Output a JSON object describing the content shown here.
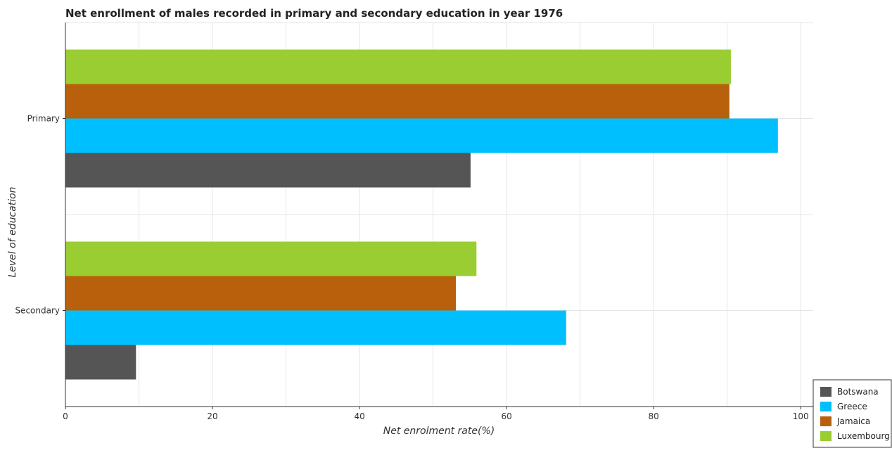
{
  "chart_data": {
    "type": "bar",
    "orientation": "horizontal",
    "title": "Net enrollment of males recorded in primary and secondary education in year 1976",
    "xlabel": "Net enrolment rate(%)",
    "ylabel": "Level of education",
    "categories": [
      "Primary",
      "Secondary"
    ],
    "series": [
      {
        "name": "Botswana",
        "color": "#555555",
        "values": [
          55.1,
          9.6
        ]
      },
      {
        "name": "Greece",
        "color": "#00bfff",
        "values": [
          96.9,
          68.1
        ]
      },
      {
        "name": "Jamaica",
        "color": "#b8600b",
        "values": [
          90.3,
          53.1
        ]
      },
      {
        "name": "Luxembourg",
        "color": "#9acd32",
        "values": [
          90.5,
          55.9
        ]
      }
    ],
    "xlim": [
      0,
      101.7
    ],
    "xticks": [
      0,
      20,
      40,
      60,
      80,
      100
    ],
    "grid": true,
    "legend_position": "bottom-right"
  }
}
